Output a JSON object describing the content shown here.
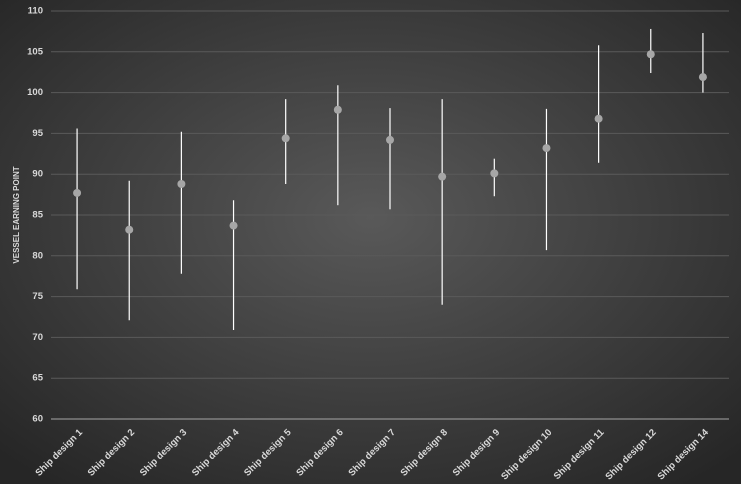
{
  "chart_data": {
    "type": "errorbar",
    "y_label": "VESSEL EARNING POINT",
    "categories": [
      "Ship design 1",
      "Ship design 2",
      "Ship design 3",
      "Ship design 4",
      "Ship design 5",
      "Ship design 6",
      "Ship design 7",
      "Ship design 8",
      "Ship design 9",
      "Ship design 10",
      "Ship design 11",
      "Ship design 12",
      "Ship design 14"
    ],
    "values": [
      87.7,
      83.2,
      88.8,
      83.7,
      94.4,
      97.9,
      94.2,
      89.7,
      90.1,
      93.2,
      96.8,
      104.7,
      101.9
    ],
    "low": [
      75.9,
      72.1,
      77.8,
      70.9,
      88.8,
      86.2,
      85.7,
      74.0,
      87.3,
      80.7,
      91.4,
      102.4,
      100.0
    ],
    "high": [
      95.6,
      89.2,
      95.2,
      86.8,
      99.2,
      100.9,
      98.1,
      99.2,
      91.9,
      98.0,
      105.8,
      107.8,
      107.3
    ],
    "marker_color": "#a6a6a6",
    "bar_color": "#ffffff",
    "ylim": [
      60,
      110
    ],
    "yticks": [
      60,
      65,
      70,
      75,
      80,
      85,
      90,
      95,
      100,
      105,
      110
    ],
    "grid": true
  }
}
